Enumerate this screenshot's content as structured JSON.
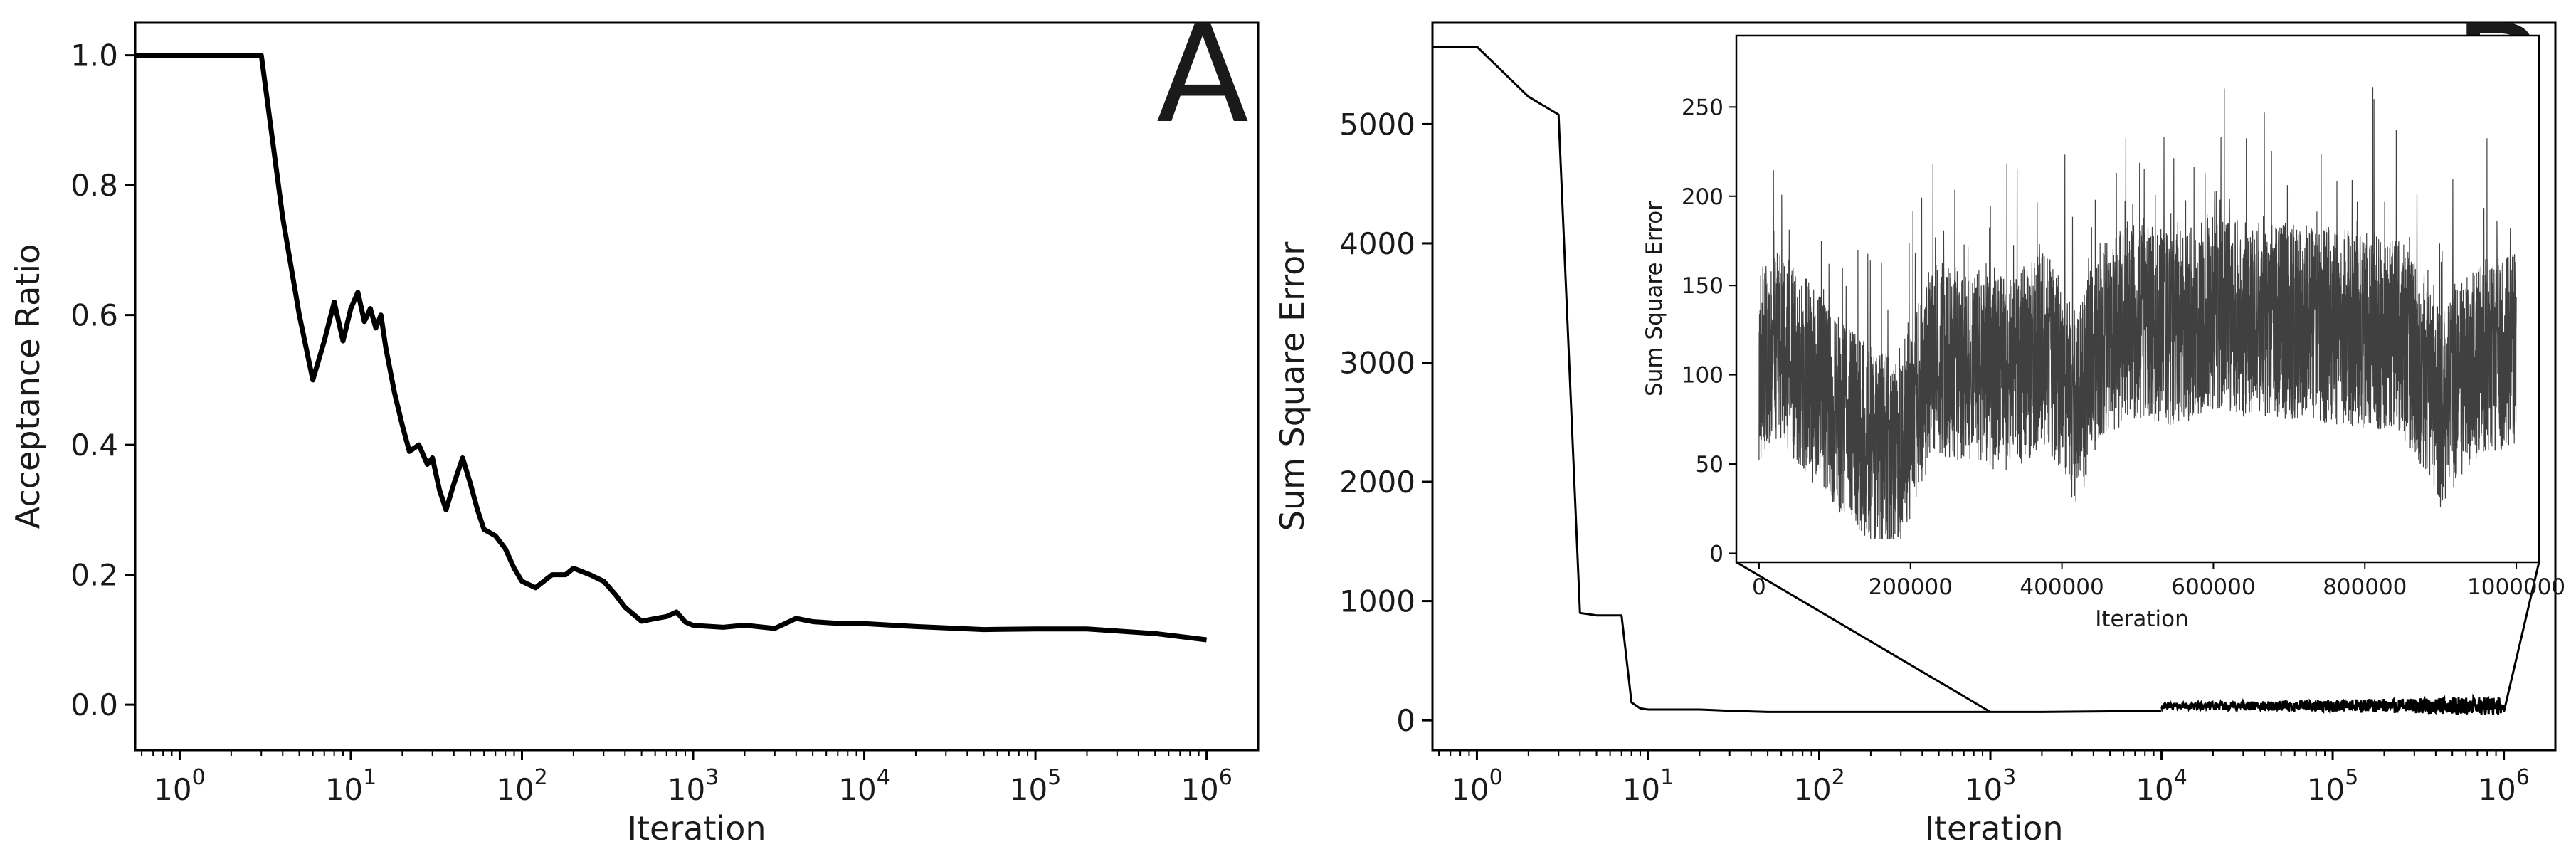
{
  "figure": {
    "panels": [
      "A",
      "B"
    ]
  },
  "chart_data": [
    {
      "id": "A",
      "type": "line",
      "panel_label": "A",
      "xlabel": "Iteration",
      "ylabel": "Acceptance Ratio",
      "xscale": "log",
      "xlim": [
        0.55,
        2000000
      ],
      "ylim": [
        -0.07,
        1.05
      ],
      "xticks": [
        {
          "value": 1,
          "base": "10",
          "exp": "0"
        },
        {
          "value": 10,
          "base": "10",
          "exp": "1"
        },
        {
          "value": 100,
          "base": "10",
          "exp": "2"
        },
        {
          "value": 1000,
          "base": "10",
          "exp": "3"
        },
        {
          "value": 10000,
          "base": "10",
          "exp": "4"
        },
        {
          "value": 100000,
          "base": "10",
          "exp": "5"
        },
        {
          "value": 1000000,
          "base": "10",
          "exp": "6"
        }
      ],
      "yticks": [
        {
          "value": 0.0,
          "label": "0.0"
        },
        {
          "value": 0.2,
          "label": "0.2"
        },
        {
          "value": 0.4,
          "label": "0.4"
        },
        {
          "value": 0.6,
          "label": "0.6"
        },
        {
          "value": 0.8,
          "label": "0.8"
        },
        {
          "value": 1.0,
          "label": "1.0"
        }
      ],
      "grid": false,
      "series": [
        {
          "x": [
            0.55,
            1,
            2,
            3,
            4,
            5,
            6,
            7,
            8,
            9,
            10,
            11,
            12,
            13,
            14,
            15,
            16,
            18,
            20,
            22,
            25,
            28,
            30,
            33,
            36,
            40,
            45,
            50,
            55,
            60,
            70,
            80,
            90,
            100,
            120,
            150,
            180,
            200,
            250,
            300,
            350,
            400,
            500,
            600,
            700,
            800,
            900,
            1000,
            1500,
            2000,
            3000,
            4000,
            5000,
            7000,
            10000,
            20000,
            50000,
            100000,
            200000,
            500000,
            1000000
          ],
          "y": [
            1.0,
            1.0,
            1.0,
            1.0,
            0.75,
            0.6,
            0.5,
            0.56,
            0.62,
            0.56,
            0.61,
            0.635,
            0.59,
            0.61,
            0.58,
            0.6,
            0.55,
            0.48,
            0.43,
            0.39,
            0.4,
            0.37,
            0.38,
            0.33,
            0.3,
            0.34,
            0.38,
            0.34,
            0.3,
            0.27,
            0.26,
            0.24,
            0.21,
            0.19,
            0.18,
            0.2,
            0.2,
            0.21,
            0.2,
            0.19,
            0.17,
            0.15,
            0.13,
            0.13,
            0.135,
            0.14,
            0.13,
            0.12,
            0.12,
            0.125,
            0.12,
            0.13,
            0.125,
            0.125,
            0.125,
            0.12,
            0.115,
            0.115,
            0.115,
            0.11,
            0.1
          ]
        }
      ]
    },
    {
      "id": "B",
      "type": "line",
      "panel_label": "B",
      "xlabel": "Iteration",
      "ylabel": "Sum Square Error",
      "xscale": "log",
      "xlim": [
        0.55,
        2000000
      ],
      "ylim": [
        -250,
        5850
      ],
      "xticks": [
        {
          "value": 1,
          "base": "10",
          "exp": "0"
        },
        {
          "value": 10,
          "base": "10",
          "exp": "1"
        },
        {
          "value": 100,
          "base": "10",
          "exp": "2"
        },
        {
          "value": 1000,
          "base": "10",
          "exp": "3"
        },
        {
          "value": 10000,
          "base": "10",
          "exp": "4"
        },
        {
          "value": 100000,
          "base": "10",
          "exp": "5"
        },
        {
          "value": 1000000,
          "base": "10",
          "exp": "6"
        }
      ],
      "yticks": [
        {
          "value": 0,
          "label": "0"
        },
        {
          "value": 1000,
          "label": "1000"
        },
        {
          "value": 2000,
          "label": "2000"
        },
        {
          "value": 3000,
          "label": "3000"
        },
        {
          "value": 4000,
          "label": "4000"
        },
        {
          "value": 5000,
          "label": "5000"
        }
      ],
      "grid": false,
      "series": [
        {
          "x": [
            0.55,
            1,
            2,
            3,
            4,
            5,
            6,
            7,
            8,
            9,
            10,
            15,
            20,
            30,
            50,
            100,
            200,
            500,
            1000,
            2000,
            5000,
            10000
          ],
          "y": [
            5650,
            5650,
            5230,
            5080,
            900,
            880,
            880,
            880,
            150,
            100,
            90,
            90,
            90,
            80,
            70,
            70,
            70,
            70,
            70,
            70,
            75,
            80
          ]
        }
      ],
      "noisy_segment": {
        "x_range": [
          10000,
          1000000
        ],
        "y_center": 120,
        "y_spread": 80
      },
      "inset": {
        "type": "line",
        "xlabel": "Iteration",
        "ylabel": "Sum Square Error",
        "xscale": "linear",
        "xlim": [
          -30000,
          1030000
        ],
        "ylim": [
          -5,
          290
        ],
        "xticks": [
          {
            "value": 0,
            "label": "0"
          },
          {
            "value": 200000,
            "label": "200000"
          },
          {
            "value": 400000,
            "label": "400000"
          },
          {
            "value": 600000,
            "label": "600000"
          },
          {
            "value": 800000,
            "label": "800000"
          },
          {
            "value": 1000000,
            "label": "1000000"
          }
        ],
        "yticks": [
          {
            "value": 0,
            "label": "0"
          },
          {
            "value": 50,
            "label": "50"
          },
          {
            "value": 100,
            "label": "100"
          },
          {
            "value": 150,
            "label": "150"
          },
          {
            "value": 200,
            "label": "200"
          },
          {
            "value": 250,
            "label": "250"
          }
        ],
        "trend": {
          "x": [
            0,
            30000,
            60000,
            100000,
            150000,
            180000,
            200000,
            230000,
            280000,
            330000,
            380000,
            420000,
            450000,
            500000,
            550000,
            600000,
            650000,
            700000,
            750000,
            800000,
            850000,
            880000,
            900000,
            930000,
            960000,
            1000000
          ],
          "y": [
            105,
            115,
            100,
            80,
            60,
            55,
            75,
            110,
            105,
            100,
            115,
            80,
            120,
            130,
            125,
            135,
            130,
            130,
            128,
            125,
            120,
            100,
            80,
            100,
            110,
            115
          ]
        },
        "spread": 55,
        "zoom_source_x_range": [
          1000,
          1000000
        ]
      }
    }
  ]
}
